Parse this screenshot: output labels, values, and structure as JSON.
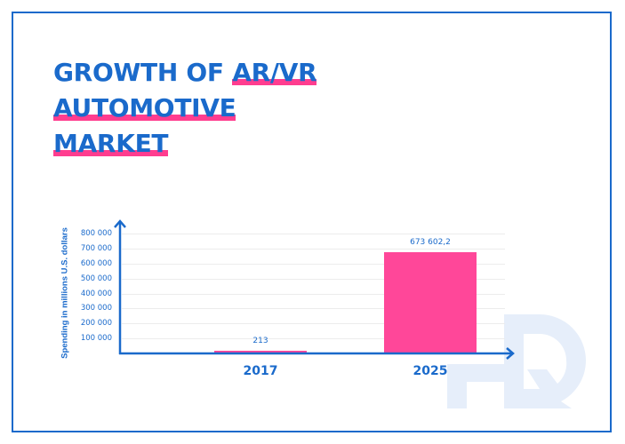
{
  "title": {
    "part1": "GROWTH OF ",
    "highlight1": "AR/VR AUTOMOTIVE",
    "highlight2": "MARKET"
  },
  "watermark": "HQ",
  "colors": {
    "primary_blue": "#1a6acb",
    "bar_pink": "#ff4799",
    "highlight_pink": "#ff3d8f",
    "watermark": "#e6eefa",
    "grid": "#ececec"
  },
  "chart_data": {
    "type": "bar",
    "title": "GROWTH OF AR/VR AUTOMOTIVE MARKET",
    "categories": [
      "2017",
      "2025"
    ],
    "values": [
      213,
      673602.2
    ],
    "value_labels": [
      "213",
      "673 602,2"
    ],
    "xlabel": "",
    "ylabel": "Spending in millions U.S. dollars",
    "ylim": [
      0,
      800000
    ],
    "yticks": [
      100000,
      200000,
      300000,
      400000,
      500000,
      600000,
      700000,
      800000
    ],
    "ytick_labels": [
      "100 000",
      "200 000",
      "300 000",
      "400 000",
      "500 000",
      "600 000",
      "700 000",
      "800 000"
    ],
    "grid": true,
    "legend": null
  }
}
